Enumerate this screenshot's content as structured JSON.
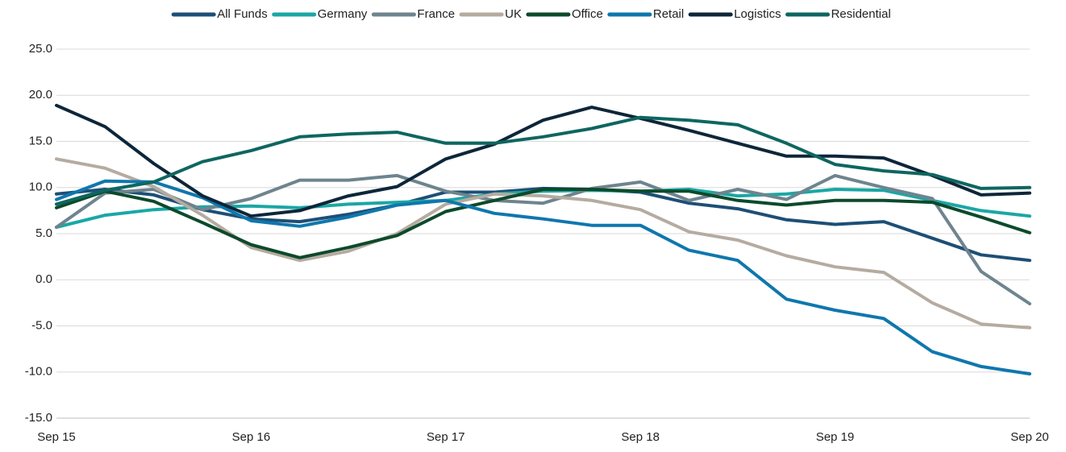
{
  "chart_data": {
    "type": "line",
    "categories": [
      "Sep 15",
      null,
      null,
      null,
      "Sep 16",
      null,
      null,
      null,
      "Sep 17",
      null,
      null,
      null,
      "Sep 18",
      null,
      null,
      null,
      "Sep 19",
      null,
      null,
      null,
      "Sep 20"
    ],
    "series": [
      {
        "name": "All Funds",
        "color": "#1d4f76",
        "values": [
          9.3,
          9.8,
          9.2,
          7.6,
          6.6,
          6.3,
          7.1,
          8.1,
          9.5,
          9.5,
          9.9,
          9.8,
          9.5,
          8.3,
          7.7,
          6.5,
          6.0,
          6.3,
          4.5,
          2.7,
          2.1
        ]
      },
      {
        "name": "Germany",
        "color": "#1aa7a5",
        "values": [
          5.7,
          7.0,
          7.6,
          7.9,
          8.0,
          7.8,
          8.2,
          8.4,
          8.6,
          9.3,
          9.6,
          9.7,
          9.6,
          9.8,
          9.1,
          9.3,
          9.8,
          9.7,
          8.6,
          7.5,
          6.9
        ]
      },
      {
        "name": "France",
        "color": "#6e848e",
        "values": [
          5.7,
          9.4,
          9.8,
          7.6,
          8.8,
          10.8,
          10.8,
          11.3,
          9.6,
          8.6,
          8.3,
          9.9,
          10.6,
          8.6,
          9.8,
          8.7,
          11.3,
          10.0,
          8.8,
          0.9,
          -2.6
        ]
      },
      {
        "name": "UK",
        "color": "#b5aba0",
        "values": [
          13.1,
          12.1,
          10.1,
          7.0,
          3.5,
          2.1,
          3.1,
          5.0,
          8.2,
          9.3,
          9.1,
          8.6,
          7.6,
          5.2,
          4.3,
          2.6,
          1.4,
          0.8,
          -2.5,
          -4.8,
          -5.2
        ]
      },
      {
        "name": "Office",
        "color": "#0c4a2b",
        "values": [
          7.8,
          9.6,
          8.5,
          6.2,
          3.8,
          2.4,
          3.5,
          4.8,
          7.4,
          8.6,
          9.8,
          9.8,
          9.6,
          9.6,
          8.6,
          8.1,
          8.6,
          8.6,
          8.4,
          6.8,
          5.1
        ]
      },
      {
        "name": "Retail",
        "color": "#0f77ad",
        "values": [
          8.7,
          10.7,
          10.6,
          8.9,
          6.4,
          5.8,
          6.8,
          8.1,
          8.6,
          7.2,
          6.6,
          5.9,
          5.9,
          3.2,
          2.1,
          -2.1,
          -3.3,
          -4.2,
          -7.8,
          -9.4,
          -10.2
        ]
      },
      {
        "name": "Logistics",
        "color": "#0d2639",
        "values": [
          18.9,
          16.6,
          12.6,
          9.1,
          6.9,
          7.5,
          9.1,
          10.1,
          13.1,
          14.7,
          17.3,
          18.7,
          17.5,
          16.2,
          14.8,
          13.4,
          13.4,
          13.2,
          11.3,
          9.2,
          9.4
        ]
      },
      {
        "name": "Residential",
        "color": "#0e6660",
        "values": [
          8.2,
          9.7,
          10.6,
          12.8,
          14.0,
          15.5,
          15.8,
          16.0,
          14.8,
          14.8,
          15.5,
          16.4,
          17.6,
          17.3,
          16.8,
          14.8,
          12.5,
          11.8,
          11.4,
          9.9,
          10.0
        ]
      }
    ],
    "ylim": [
      -15,
      25
    ],
    "yticks": [
      {
        "value": -15,
        "label": "-15.0"
      },
      {
        "value": -10,
        "label": "-10.0"
      },
      {
        "value": -5,
        "label": "-5.0"
      },
      {
        "value": 0,
        "label": "0.0"
      },
      {
        "value": 5,
        "label": "5.0"
      },
      {
        "value": 10,
        "label": "10.0"
      },
      {
        "value": 15,
        "label": "15.0"
      },
      {
        "value": 20,
        "label": "20.0"
      },
      {
        "value": 25,
        "label": "25.0"
      }
    ],
    "grid": true,
    "legend": "top"
  }
}
